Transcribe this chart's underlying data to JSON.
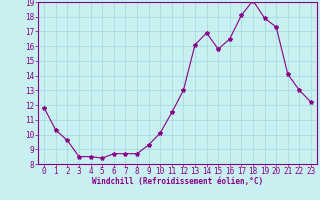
{
  "x": [
    0,
    1,
    2,
    3,
    4,
    5,
    6,
    7,
    8,
    9,
    10,
    11,
    12,
    13,
    14,
    15,
    16,
    17,
    18,
    19,
    20,
    21,
    22,
    23
  ],
  "y": [
    11.8,
    10.3,
    9.6,
    8.5,
    8.5,
    8.4,
    8.7,
    8.7,
    8.7,
    9.3,
    10.1,
    11.5,
    13.0,
    16.1,
    16.9,
    15.8,
    16.5,
    18.1,
    19.1,
    17.9,
    17.3,
    14.1,
    13.0,
    12.2
  ],
  "line_color": "#880088",
  "marker": "*",
  "marker_size": 3,
  "bg_color": "#c8f0f0",
  "grid_color": "#a0d8d8",
  "ylim": [
    8,
    19
  ],
  "xlim": [
    -0.5,
    23.5
  ],
  "yticks": [
    8,
    9,
    10,
    11,
    12,
    13,
    14,
    15,
    16,
    17,
    18,
    19
  ],
  "xticks": [
    0,
    1,
    2,
    3,
    4,
    5,
    6,
    7,
    8,
    9,
    10,
    11,
    12,
    13,
    14,
    15,
    16,
    17,
    18,
    19,
    20,
    21,
    22,
    23
  ],
  "xlabel": "Windchill (Refroidissement éolien,°C)",
  "xlabel_color": "#880088",
  "tick_color": "#880088",
  "axis_color": "#880088",
  "label_fontsize": 5.5,
  "tick_fontsize": 5.5
}
